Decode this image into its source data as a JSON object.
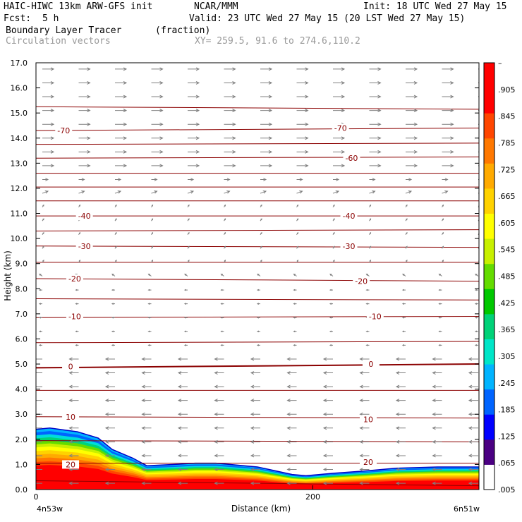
{
  "header": {
    "model": "HAIC-HIWC 13km ARW-GFS init",
    "org": "NCAR/MMM",
    "init": "Init: 18 UTC Wed 27 May 15",
    "fcst_label": "Fcst:",
    "fcst_value": "5 h",
    "valid": "Valid: 23 UTC Wed 27 May 15 (20 LST Wed 27 May 15)",
    "field": "Boundary Layer Tracer",
    "units": "(fraction)",
    "vectors": "Circulation vectors",
    "xy": "XY= 259.5, 91.6 to 274.6,110.2"
  },
  "colors": {
    "contour": "#8b0000",
    "vector": "#808080",
    "colorbar": [
      "#ffffff",
      "#4b0082",
      "#0000ff",
      "#0064ff",
      "#00b4ff",
      "#00e6c8",
      "#00d278",
      "#00c800",
      "#64dc00",
      "#c8f000",
      "#ffff00",
      "#ffd200",
      "#ffaa00",
      "#ff7800",
      "#ff4600",
      "#ff0000",
      "#ff0000"
    ]
  },
  "chart_data": {
    "type": "heatmap",
    "title": "Boundary Layer Tracer",
    "units": "(fraction)",
    "xlabel": "Distance (km)",
    "ylabel": "Height (km)",
    "x_ticks": [
      "0",
      "200"
    ],
    "x_tick_values": [
      0,
      200
    ],
    "xlim": [
      0,
      320
    ],
    "endpoints": {
      "left": "4n53w",
      "right": "6n51w"
    },
    "y_ticks": [
      "0.0",
      "1.0",
      "2.0",
      "3.0",
      "4.0",
      "5.0",
      "6.0",
      "7.0",
      "8.0",
      "9.0",
      "10.0",
      "11.0",
      "12.0",
      "13.0",
      "14.0",
      "15.0",
      "16.0",
      "17.0"
    ],
    "ylim": [
      0,
      17
    ],
    "colorbar_labels": [
      "–",
      ".905",
      ".845",
      ".785",
      ".725",
      ".665",
      ".605",
      ".545",
      ".485",
      ".425",
      ".365",
      ".305",
      ".245",
      ".185",
      ".125",
      ".065",
      ".005"
    ],
    "tracer_top_km": [
      [
        0,
        2.4
      ],
      [
        10,
        2.45
      ],
      [
        30,
        2.3
      ],
      [
        45,
        2.05
      ],
      [
        55,
        1.6
      ],
      [
        70,
        1.25
      ],
      [
        80,
        0.95
      ],
      [
        100,
        1.0
      ],
      [
        115,
        1.05
      ],
      [
        130,
        1.05
      ],
      [
        160,
        0.9
      ],
      [
        185,
        0.6
      ],
      [
        195,
        0.55
      ],
      [
        215,
        0.65
      ],
      [
        240,
        0.75
      ],
      [
        260,
        0.85
      ],
      [
        290,
        0.9
      ],
      [
        320,
        0.9
      ]
    ],
    "temperature_contour_labels": [
      {
        "x": 20,
        "y": 14.3,
        "label": "-70"
      },
      {
        "x": 220,
        "y": 14.4,
        "label": "-70"
      },
      {
        "x": 228,
        "y": 13.2,
        "label": "-60"
      },
      {
        "x": 35,
        "y": 10.9,
        "label": "-40"
      },
      {
        "x": 226,
        "y": 10.9,
        "label": "-40"
      },
      {
        "x": 35,
        "y": 9.7,
        "label": "-30"
      },
      {
        "x": 226,
        "y": 9.7,
        "label": "-30"
      },
      {
        "x": 28,
        "y": 8.4,
        "label": "-20"
      },
      {
        "x": 235,
        "y": 8.3,
        "label": "-20"
      },
      {
        "x": 28,
        "y": 6.9,
        "label": "-10"
      },
      {
        "x": 245,
        "y": 6.9,
        "label": "-10"
      },
      {
        "x": 25,
        "y": 4.9,
        "label": "0"
      },
      {
        "x": 242,
        "y": 5.0,
        "label": "0"
      },
      {
        "x": 25,
        "y": 2.9,
        "label": "10"
      },
      {
        "x": 240,
        "y": 2.8,
        "label": "10"
      },
      {
        "x": 25,
        "y": 1.0,
        "label": "20"
      },
      {
        "x": 240,
        "y": 1.1,
        "label": "20"
      }
    ]
  }
}
